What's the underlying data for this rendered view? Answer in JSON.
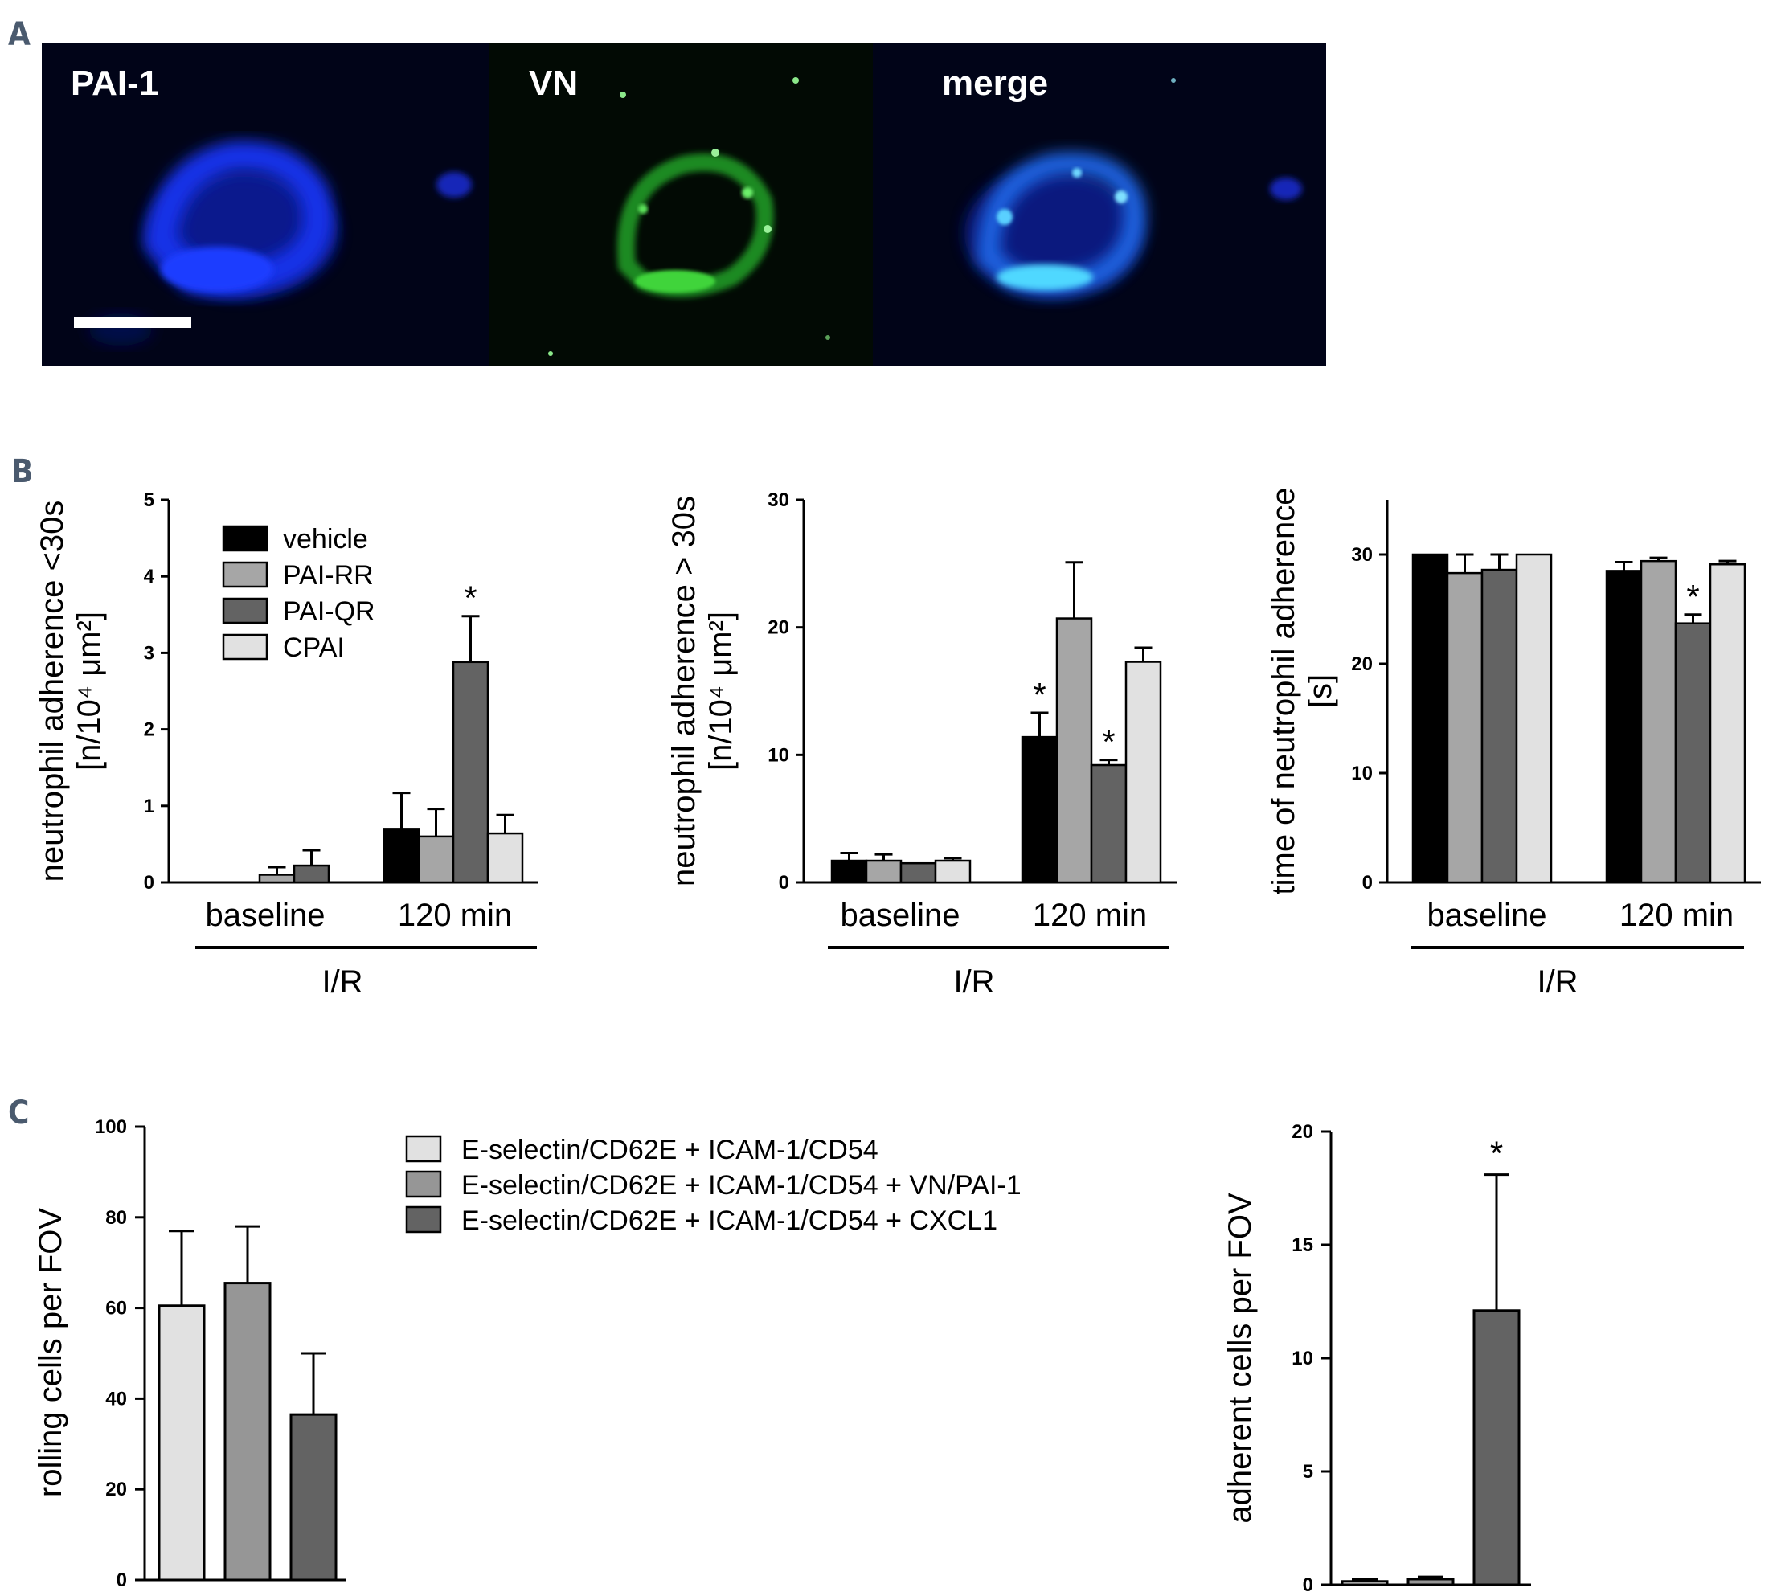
{
  "panel_letters": [
    "A",
    "B",
    "C"
  ],
  "micrograph": {
    "labels": [
      "PAI-1",
      "VN",
      "merge"
    ]
  },
  "colors": {
    "vehicle": "#000000",
    "PAI-RR": "#a6a6a6",
    "PAI-QR": "#636363",
    "CPAI": "#e1e1e1",
    "c_light": "#e1e1e1",
    "c_mid": "#969696",
    "c_dark": "#636363"
  },
  "chart_data": [
    {
      "type": "bar",
      "ylabel": [
        "neutrophil adherence <30s",
        "[n/10⁴ μm²]"
      ],
      "categories": [
        "baseline",
        "120 min"
      ],
      "group_label": "I/R",
      "ylim": [
        0,
        5
      ],
      "yticks": [
        "0",
        "1",
        "2",
        "3",
        "4",
        "5"
      ],
      "legend": [
        "vehicle",
        "PAI-RR",
        "PAI-QR",
        "CPAI"
      ],
      "series": [
        {
          "name": "vehicle",
          "values": [
            0.0,
            0.7
          ],
          "errors": [
            0.0,
            0.47
          ]
        },
        {
          "name": "PAI-RR",
          "values": [
            0.1,
            0.6
          ],
          "errors": [
            0.1,
            0.36
          ]
        },
        {
          "name": "PAI-QR",
          "values": [
            0.22,
            2.88
          ],
          "errors": [
            0.2,
            0.6
          ]
        },
        {
          "name": "CPAI",
          "values": [
            0.0,
            0.64
          ],
          "errors": [
            0.0,
            0.24
          ]
        }
      ],
      "annotations": [
        {
          "text": "*",
          "category": "120 min",
          "series": "PAI-QR"
        }
      ]
    },
    {
      "type": "bar",
      "ylabel": [
        "neutrophil adherence  > 30s",
        "[n/10⁴ μm²]"
      ],
      "categories": [
        "baseline",
        "120 min"
      ],
      "group_label": "I/R",
      "ylim": [
        0,
        30
      ],
      "yticks": [
        "0",
        "10",
        "20",
        "30"
      ],
      "series": [
        {
          "name": "vehicle",
          "values": [
            1.7,
            11.4
          ],
          "errors": [
            0.6,
            1.9
          ]
        },
        {
          "name": "PAI-RR",
          "values": [
            1.7,
            20.7
          ],
          "errors": [
            0.5,
            4.4
          ]
        },
        {
          "name": "PAI-QR",
          "values": [
            1.5,
            9.2
          ],
          "errors": [
            0.0,
            0.4
          ]
        },
        {
          "name": "CPAI",
          "values": [
            1.7,
            17.3
          ],
          "errors": [
            0.2,
            1.1
          ]
        }
      ],
      "annotations": [
        {
          "text": "*",
          "category": "120 min",
          "series": "vehicle"
        },
        {
          "text": "*",
          "category": "120 min",
          "series": "PAI-QR"
        }
      ]
    },
    {
      "type": "bar",
      "ylabel": [
        "time of neutrophil adherence",
        "[s]"
      ],
      "categories": [
        "baseline",
        "120 min"
      ],
      "group_label": "I/R",
      "ylim": [
        0,
        35
      ],
      "yticks": [
        "0",
        "10",
        "20",
        "30"
      ],
      "series": [
        {
          "name": "vehicle",
          "values": [
            30.0,
            28.5
          ],
          "errors": [
            0.0,
            0.8
          ]
        },
        {
          "name": "PAI-RR",
          "values": [
            28.3,
            29.4
          ],
          "errors": [
            1.7,
            0.3
          ]
        },
        {
          "name": "PAI-QR",
          "values": [
            28.6,
            23.7
          ],
          "errors": [
            1.4,
            0.8
          ]
        },
        {
          "name": "CPAI",
          "values": [
            30.0,
            29.1
          ],
          "errors": [
            0.0,
            0.3
          ]
        }
      ],
      "annotations": [
        {
          "text": "*",
          "category": "120 min",
          "series": "PAI-QR"
        }
      ]
    },
    {
      "type": "bar",
      "ylabel": [
        "rolling cells per FOV"
      ],
      "ylim": [
        0,
        100
      ],
      "yticks": [
        "0",
        "20",
        "40",
        "60",
        "80",
        "100"
      ],
      "legend": [
        "E-selectin/CD62E + ICAM-1/CD54",
        "E-selectin/CD62E + ICAM-1/CD54 + VN/PAI-1",
        "E-selectin/CD62E + ICAM-1/CD54 + CXCL1"
      ],
      "values": [
        60.5,
        65.5,
        36.5
      ],
      "errors": [
        16.5,
        12.5,
        13.5
      ]
    },
    {
      "type": "bar",
      "ylabel": [
        "adherent cells per FOV"
      ],
      "ylim": [
        0,
        20
      ],
      "yticks": [
        "0",
        "5",
        "10",
        "15",
        "20"
      ],
      "values": [
        0.15,
        0.25,
        12.1
      ],
      "errors": [
        0.1,
        0.1,
        6.0
      ],
      "annotations": [
        {
          "text": "*",
          "bar": 2
        }
      ]
    }
  ]
}
